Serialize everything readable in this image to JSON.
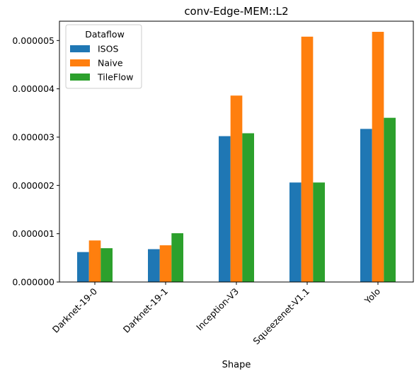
{
  "chart_data": {
    "type": "bar",
    "title": "conv-Edge-MEM::L2",
    "xlabel": "Shape",
    "ylabel": "",
    "categories": [
      "Darknet-19-0",
      "Darknet-19-1",
      "Inception-V3",
      "Squeezenet-V1.1",
      "Yolo"
    ],
    "series": [
      {
        "name": "ISOS",
        "color": "#1f77b4",
        "values": [
          6.2e-07,
          6.8e-07,
          3.02e-06,
          2.06e-06,
          3.17e-06
        ]
      },
      {
        "name": "Naive",
        "color": "#ff7f0e",
        "values": [
          8.6e-07,
          7.6e-07,
          3.86e-06,
          5.08e-06,
          5.18e-06
        ]
      },
      {
        "name": "TileFlow",
        "color": "#2ca02c",
        "values": [
          7e-07,
          1.01e-06,
          3.08e-06,
          2.06e-06,
          3.4e-06
        ]
      }
    ],
    "ylim": [
      0,
      5.4e-06
    ],
    "yticks": [
      0,
      1e-06,
      2e-06,
      3e-06,
      4e-06,
      5e-06
    ],
    "ytick_labels": [
      "0.000000",
      "0.000001",
      "0.000002",
      "0.000003",
      "0.000004",
      "0.000005"
    ],
    "legend": {
      "title": "Dataflow",
      "placement": "upper-left"
    },
    "grid": false
  }
}
